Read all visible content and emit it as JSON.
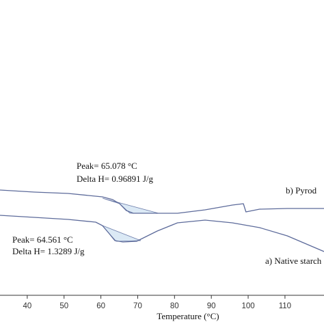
{
  "chart_data": {
    "type": "line",
    "x_label": "Temperature (°C)",
    "xlim": [
      32.6,
      120.6
    ],
    "xticks": [
      40,
      50,
      60,
      70,
      80,
      90,
      100,
      110
    ],
    "ylim": [
      0,
      216
    ],
    "series": [
      {
        "name": "b) Pyrod",
        "color": "#5c6a9a",
        "x": [
          32.6,
          41.9,
          51.1,
          60.4,
          63.2,
          65.1,
          66.9,
          68.8,
          71.6,
          75.3,
          80.8,
          88.3,
          95.7,
          98.7,
          99.4,
          103.1,
          110.6,
          120.6
        ],
        "values": [
          77,
          75.5,
          74.5,
          72,
          70,
          67,
          62,
          60,
          60,
          60,
          60,
          62.5,
          66,
          67,
          61,
          63,
          63.5,
          63.5
        ]
      },
      {
        "name": "a) Native starch",
        "color": "#5c6a9a",
        "x": [
          32.6,
          41.9,
          51.1,
          58.6,
          60.4,
          62.3,
          63.8,
          66.0,
          69.7,
          75.3,
          80.8,
          88.3,
          95.7,
          103.1,
          110.6,
          120.6
        ],
        "values": [
          58.5,
          57,
          55.5,
          53.5,
          51,
          45,
          40,
          39,
          39.5,
          47,
          53,
          55,
          53,
          49.5,
          43.5,
          32
        ]
      }
    ],
    "annotations": [
      "Peak= 65.078 °C",
      "Delta H= 0.96891 J/g",
      "Peak= 64.561 °C",
      "Delta H= 1.3289 J/g"
    ]
  }
}
